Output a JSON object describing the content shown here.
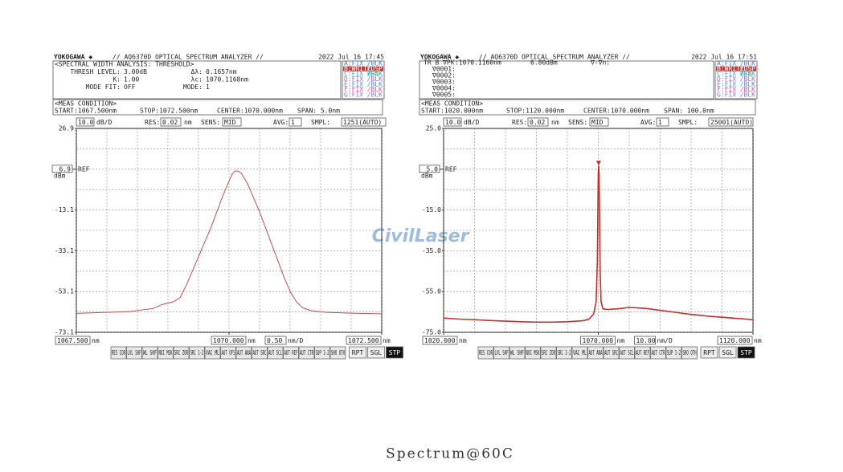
{
  "chart_data": [
    {
      "type": "line",
      "brand": "YOKOGAWA ◆",
      "model": "// AQ6370D OPTICAL SPECTRUM ANALYZER //",
      "datetime": "2022 Jul 16 17:45",
      "analysis": [
        [
          "<SPECTRAL WIDTH ANALYSIS: THRESHOLD>"
        ],
        [
          "THRESH LEVEL:",
          "3.00dB",
          "Δλ:",
          "0.1657nm"
        ],
        [
          "K:",
          "1.00",
          "λc:",
          "1070.1168nm"
        ],
        [
          "MODE FIT:",
          "OFF",
          "MODE:",
          "1"
        ]
      ],
      "traces": [
        [
          "A:FIX",
          "/BLK"
        ],
        [
          "B:WRITE",
          "/DSP"
        ],
        [
          "C:FIX B-A",
          "/BLK"
        ],
        [
          "D:FIX",
          "/BLK"
        ],
        [
          "E:FIX",
          "/BLK"
        ],
        [
          "F:FIX",
          "/BLK"
        ],
        [
          "G:FIX",
          "/BLK"
        ]
      ],
      "active_trace": 1,
      "meas_title": "<MEAS CONDITION>",
      "meas": [
        "START:1067.500nm",
        "STOP:1072.500nm",
        "CENTER:1070.000nm",
        "SPAN:  5.0nm"
      ],
      "settings": [
        "10.0",
        "dB/D",
        "RES:",
        "0.02",
        "nm",
        "SENS:",
        "MID",
        "AVG:",
        "1",
        "SMPL:",
        "1251(AUTO)"
      ],
      "ylim": [
        -73.1,
        26.9
      ],
      "yticks": [
        26.9,
        -13.1,
        -33.1,
        -53.1,
        -73.1
      ],
      "ygrid": [
        26.9,
        16.9,
        6.9,
        -3.1,
        -13.1,
        -23.1,
        -33.1,
        -43.1,
        -53.1,
        -63.1,
        -73.1
      ],
      "ref": 6.9,
      "ref_text": "REF",
      "ref_unit": "dBm",
      "xlim": [
        1067.5,
        1072.5
      ],
      "xgrid": [
        1067.5,
        1068,
        1068.5,
        1069,
        1069.5,
        1070,
        1070.5,
        1071,
        1071.5,
        1072,
        1072.5
      ],
      "xticks": [
        {
          "value": 1067.5,
          "label": "1067.500"
        },
        {
          "value": 1070,
          "label": "1070.000"
        },
        {
          "value": 1072.5,
          "label": "1072.500"
        }
      ],
      "x_unit": "nm",
      "x_div": "0.50",
      "x_div_unit": "nm/D",
      "color": "#c0504d",
      "x": [
        1067.5,
        1067.8,
        1068.1,
        1068.4,
        1068.6,
        1068.75,
        1068.9,
        1069.1,
        1069.2,
        1069.3,
        1069.4,
        1069.5,
        1069.6,
        1069.7,
        1069.8,
        1069.9,
        1070.0,
        1070.05,
        1070.1,
        1070.15,
        1070.2,
        1070.3,
        1070.4,
        1070.5,
        1070.6,
        1070.7,
        1070.8,
        1070.9,
        1071.0,
        1071.1,
        1071.2,
        1071.35,
        1071.6,
        1072.0,
        1072.5
      ],
      "values": [
        -63.8,
        -63.5,
        -63.2,
        -62.8,
        -62.0,
        -61.5,
        -59.5,
        -58.0,
        -56.0,
        -50.0,
        -43,
        -36,
        -29,
        -22,
        -14,
        -6,
        1,
        4.5,
        6.0,
        6.0,
        5.0,
        0,
        -7,
        -14,
        -22,
        -30,
        -38,
        -46,
        -53,
        -58,
        -61,
        -62.5,
        -63.3,
        -63.7,
        -64.0
      ],
      "softkeys": [
        "RES COR",
        "LVL SHF",
        "WL SHF",
        "NOI MSK",
        "SRC ZOR",
        "SRC 1-2",
        "VAC ML",
        "AUT OFS",
        "AUT ANA",
        "AUT SRC",
        "AUT SCL",
        "AUT REF",
        "AUT CTR",
        "SUP 1-2",
        "SHO OTH"
      ],
      "buttons": [
        "RPT",
        "SGL",
        "STP"
      ]
    },
    {
      "type": "line",
      "brand": "YOKOGAWA ◆",
      "model": "// AQ6370D OPTICAL SPECTRUM ANALYZER //",
      "datetime": "2022 Jul 16 17:51",
      "analysis": [
        [
          "TR B ∇PK",
          ":1070.1160nm",
          "6.80dBm",
          "∇-∇n:"
        ],
        [
          "∇0001:"
        ],
        [
          "∇0002:"
        ],
        [
          "∇0003:"
        ],
        [
          "∇0004:"
        ],
        [
          "∇0005:"
        ]
      ],
      "traces": [
        [
          "A:FIX",
          "/BLK"
        ],
        [
          "B:WRITE",
          "/DSP"
        ],
        [
          "C:FIX B-A",
          "/BLK"
        ],
        [
          "D:FIX",
          "/BLK"
        ],
        [
          "E:FIX",
          "/BLK"
        ],
        [
          "F:FIX",
          "/BLK"
        ],
        [
          "G:FIX",
          "/BLK"
        ]
      ],
      "active_trace": 1,
      "meas_title": "<MEAS CONDITION>",
      "meas": [
        "START:1020.000nm",
        "STOP:1120.000nm",
        "CENTER:1070.000nm",
        "SPAN: 100.0nm"
      ],
      "settings": [
        "10.0",
        "dB/D",
        "RES:",
        "0.02",
        "nm",
        "SENS:",
        "MID",
        "AVG:",
        "1",
        "SMPL:",
        "25001(AUTO)"
      ],
      "ylim": [
        -75,
        25
      ],
      "yticks": [
        {
          "value": 25,
          "label": "25.0"
        },
        {
          "value": -15,
          "label": "-15.0"
        },
        {
          "value": -35,
          "label": "-35.0"
        },
        {
          "value": -55,
          "label": "-55.0"
        },
        {
          "value": -75,
          "label": "-75.0"
        }
      ],
      "ygrid": [
        25,
        15,
        5,
        -5,
        -15,
        -25,
        -35,
        -45,
        -55,
        -65,
        -75
      ],
      "ref": {
        "value": 5,
        "label": "5.0"
      },
      "ref_text": "REF",
      "ref_unit": "dBm",
      "xlim": [
        1020,
        1120
      ],
      "xgrid": [
        1020,
        1030,
        1040,
        1050,
        1060,
        1070,
        1080,
        1090,
        1100,
        1110,
        1120
      ],
      "xticks": [
        {
          "value": 1020,
          "label": "1020.000"
        },
        {
          "value": 1070,
          "label": "1070.000"
        },
        {
          "value": 1120,
          "label": "1120.000"
        }
      ],
      "x_unit": "nm",
      "x_div": "10.00",
      "x_div_unit": "nm/D",
      "color": "#c0302d",
      "x": [
        1020,
        1025,
        1030,
        1035,
        1040,
        1045,
        1050,
        1055,
        1060,
        1065,
        1067,
        1068.5,
        1069.3,
        1069.7,
        1069.9,
        1070.0,
        1070.116,
        1070.25,
        1070.4,
        1070.6,
        1070.9,
        1071.5,
        1073,
        1076,
        1080,
        1085,
        1090,
        1095,
        1100,
        1105,
        1110,
        1115,
        1120
      ],
      "values": [
        -68,
        -68.5,
        -68.8,
        -69.2,
        -69.5,
        -69.8,
        -70.0,
        -70.0,
        -69.8,
        -69.3,
        -68.5,
        -66,
        -60,
        -40,
        -10,
        3,
        6.8,
        3,
        -15,
        -45,
        -60,
        -63.5,
        -63.8,
        -63.5,
        -62.8,
        -63.2,
        -64.2,
        -65.2,
        -66.2,
        -67,
        -67.6,
        -68.2,
        -68.8
      ],
      "marker": {
        "x": 1070.116,
        "y": 6.8
      },
      "softkeys": [
        "RES COR",
        "LVL SHF",
        "WL SHF",
        "NOI MSK",
        "SRC ZOR",
        "SRC 1-2",
        "VAC ML",
        "AUT ANA",
        "AUT SRC",
        "AUT SCL",
        "AUT REF",
        "AUT CTR",
        "SUP 1-2",
        "SHO OTH"
      ],
      "buttons": [
        "RPT",
        "SGL",
        "STP"
      ]
    }
  ],
  "watermark": "CivilLaser",
  "caption": "Spectrum@60C"
}
